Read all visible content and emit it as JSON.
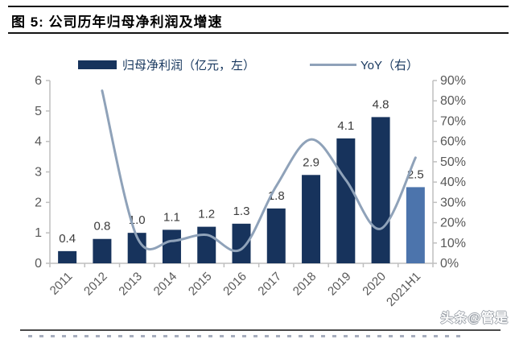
{
  "header": {
    "title": "图 5:  公司历年归母净利润及增速"
  },
  "legend": {
    "bar_label": "归母净利润（亿元，左）",
    "line_label": "YoY（右）"
  },
  "chart_data": {
    "type": "bar+line combo",
    "title": "公司历年归母净利润及增速",
    "categories": [
      "2011",
      "2012",
      "2013",
      "2014",
      "2015",
      "2016",
      "2017",
      "2018",
      "2019",
      "2020",
      "2021H1"
    ],
    "series": [
      {
        "name": "归母净利润（亿元，左）",
        "type": "bar",
        "axis": "left",
        "values": [
          0.4,
          0.8,
          1.0,
          1.1,
          1.2,
          1.3,
          1.8,
          2.9,
          4.1,
          4.8,
          2.5
        ],
        "labels": [
          "0.4",
          "0.8",
          "1.0",
          "1.1",
          "1.2",
          "1.3",
          "1.8",
          "2.9",
          "4.1",
          "4.8",
          "2.5"
        ]
      },
      {
        "name": "YoY（右）",
        "type": "line",
        "axis": "right",
        "values_pct": [
          null,
          85,
          13,
          11,
          14,
          7,
          38,
          61,
          41,
          17,
          52
        ]
      }
    ],
    "left_axis": {
      "min": 0,
      "max": 6,
      "tick_labels": [
        "0",
        "1",
        "2",
        "3",
        "4",
        "5",
        "6"
      ]
    },
    "right_axis": {
      "min_pct": 0,
      "max_pct": 90,
      "tick_labels": [
        "0%",
        "10%",
        "20%",
        "30%",
        "40%",
        "50%",
        "60%",
        "70%",
        "80%",
        "90%"
      ]
    },
    "grid": "off",
    "legend_position": "top"
  },
  "watermark": "头条@管是",
  "colors": {
    "bar": "#17335C",
    "bar_last": "#4C74AC",
    "line": "#8FA2B9",
    "axis_line": "#BFBFBF",
    "tick_text": "#595959",
    "value_label_text": "#3C3C3C",
    "legend_text": "#17375E",
    "title_text": "#000000"
  }
}
